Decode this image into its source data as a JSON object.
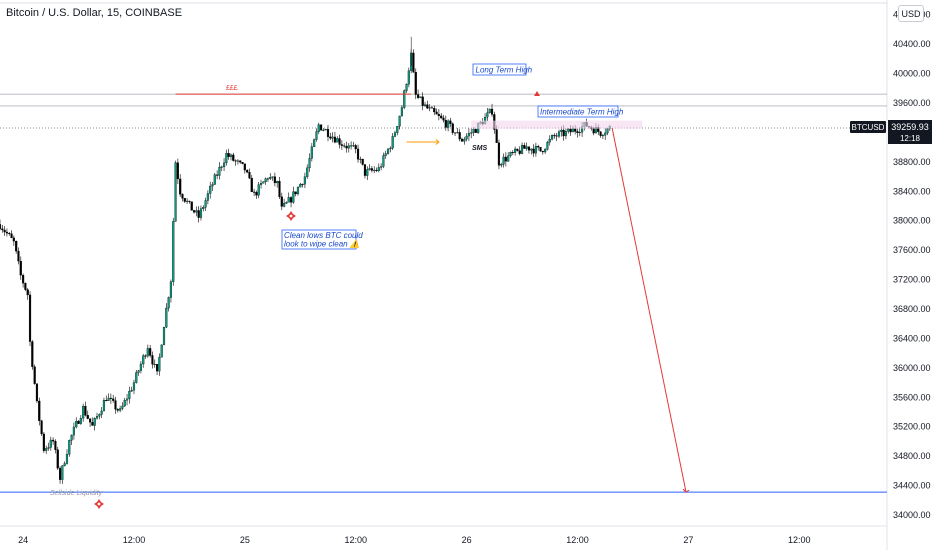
{
  "header": {
    "title": "Bitcoin / U.S. Dollar, 15, COINBASE",
    "currency": "USD"
  },
  "price_axis": {
    "ticks": [
      "40800.00",
      "40400.00",
      "40000.00",
      "39600.00",
      "39200.00",
      "38800.00",
      "38400.00",
      "38000.00",
      "37600.00",
      "37200.00",
      "36800.00",
      "36400.00",
      "36000.00",
      "35600.00",
      "35200.00",
      "34800.00",
      "34400.00",
      "34000.00"
    ],
    "symbol_badge": "BTCUSD",
    "last_price": "39259.93",
    "countdown": "12:18"
  },
  "time_axis": {
    "ticks": [
      "24",
      "12:00",
      "25",
      "12:00",
      "26",
      "12:00",
      "27",
      "12:00"
    ]
  },
  "annotations": {
    "eee_label": "£££",
    "long_term_high": "Long Term High",
    "intermediate_high": "Intermediate Term High",
    "sms": "SMS",
    "clean_lows_line1": "Clean lows BTC could",
    "clean_lows_line2": "look to wipe clean ⚠️",
    "sellside": "Sellside Liquidity"
  },
  "colors": {
    "bull": "#089981",
    "bear": "#000000",
    "red_line": "#e53935",
    "blue_line": "#2962ff",
    "orange": "#ff9800"
  },
  "chart_data": {
    "type": "candlestick",
    "ylim": [
      33850,
      41000
    ],
    "xlim": [
      "2022-01-23T21:30",
      "2022-01-27T21:30"
    ],
    "interval_minutes": 15,
    "x_ticks": [
      "2022-01-24T00:00",
      "2022-01-24T12:00",
      "2022-01-25T00:00",
      "2022-01-25T12:00",
      "2022-01-26T00:00",
      "2022-01-26T12:00",
      "2022-01-27T00:00",
      "2022-01-27T12:00"
    ],
    "last_price": 39259.93,
    "levels": {
      "sellside_liquidity": 34310,
      "equal_highs": 39720,
      "horizontal_lines": [
        39720,
        39560
      ]
    },
    "projection": {
      "start": {
        "x": "2022-01-26T15:45",
        "y": 39259.93
      },
      "end": {
        "x": "2022-01-26T23:45",
        "y": 34310
      }
    },
    "price_path": [
      {
        "x": "2022-01-23T21:30",
        "y": 37950
      },
      {
        "x": "2022-01-23T23:00",
        "y": 37700
      },
      {
        "x": "2022-01-23T23:30",
        "y": 37400
      },
      {
        "x": "2022-01-23T23:45",
        "y": 37250
      },
      {
        "x": "2022-01-24T00:30",
        "y": 37000
      },
      {
        "x": "2022-01-24T00:45",
        "y": 36350
      },
      {
        "x": "2022-01-24T01:30",
        "y": 35500
      },
      {
        "x": "2022-01-24T02:15",
        "y": 34900
      },
      {
        "x": "2022-01-24T03:15",
        "y": 35000
      },
      {
        "x": "2022-01-24T04:00",
        "y": 34500
      },
      {
        "x": "2022-01-24T05:00",
        "y": 35000
      },
      {
        "x": "2022-01-24T06:30",
        "y": 35450
      },
      {
        "x": "2022-01-24T07:30",
        "y": 35200
      },
      {
        "x": "2022-01-24T09:00",
        "y": 35600
      },
      {
        "x": "2022-01-24T10:30",
        "y": 35400
      },
      {
        "x": "2022-01-24T12:00",
        "y": 35800
      },
      {
        "x": "2022-01-24T13:30",
        "y": 36300
      },
      {
        "x": "2022-01-24T14:30",
        "y": 35900
      },
      {
        "x": "2022-01-24T15:15",
        "y": 36600
      },
      {
        "x": "2022-01-24T16:00",
        "y": 37200
      },
      {
        "x": "2022-01-24T16:30",
        "y": 38800
      },
      {
        "x": "2022-01-24T17:00",
        "y": 38400
      },
      {
        "x": "2022-01-24T18:00",
        "y": 38200
      },
      {
        "x": "2022-01-24T19:00",
        "y": 38050
      },
      {
        "x": "2022-01-24T20:30",
        "y": 38500
      },
      {
        "x": "2022-01-24T22:00",
        "y": 38900
      },
      {
        "x": "2022-01-25T00:00",
        "y": 38700
      },
      {
        "x": "2022-01-25T01:00",
        "y": 38350
      },
      {
        "x": "2022-01-25T02:30",
        "y": 38600
      },
      {
        "x": "2022-01-25T03:30",
        "y": 38500
      },
      {
        "x": "2022-01-25T04:00",
        "y": 38150
      },
      {
        "x": "2022-01-25T05:00",
        "y": 38300
      },
      {
        "x": "2022-01-25T06:30",
        "y": 38600
      },
      {
        "x": "2022-01-25T08:00",
        "y": 39300
      },
      {
        "x": "2022-01-25T09:00",
        "y": 39200
      },
      {
        "x": "2022-01-25T10:30",
        "y": 39050
      },
      {
        "x": "2022-01-25T12:00",
        "y": 38950
      },
      {
        "x": "2022-01-25T13:00",
        "y": 38650
      },
      {
        "x": "2022-01-25T14:30",
        "y": 38700
      },
      {
        "x": "2022-01-25T16:00",
        "y": 39100
      },
      {
        "x": "2022-01-25T17:00",
        "y": 39550
      },
      {
        "x": "2022-01-25T18:00",
        "y": 40250
      },
      {
        "x": "2022-01-25T18:30",
        "y": 39700
      },
      {
        "x": "2022-01-25T19:30",
        "y": 39550
      },
      {
        "x": "2022-01-25T20:30",
        "y": 39450
      },
      {
        "x": "2022-01-25T22:00",
        "y": 39300
      },
      {
        "x": "2022-01-25T23:30",
        "y": 39100
      },
      {
        "x": "2022-01-26T01:00",
        "y": 39250
      },
      {
        "x": "2022-01-26T02:45",
        "y": 39500
      },
      {
        "x": "2022-01-26T03:30",
        "y": 38800
      },
      {
        "x": "2022-01-26T05:00",
        "y": 38900
      },
      {
        "x": "2022-01-26T06:30",
        "y": 39000
      },
      {
        "x": "2022-01-26T08:00",
        "y": 38950
      },
      {
        "x": "2022-01-26T09:30",
        "y": 39150
      },
      {
        "x": "2022-01-26T11:00",
        "y": 39200
      },
      {
        "x": "2022-01-26T13:00",
        "y": 39300
      },
      {
        "x": "2022-01-26T14:30",
        "y": 39200
      },
      {
        "x": "2022-01-26T15:30",
        "y": 39260
      }
    ]
  }
}
